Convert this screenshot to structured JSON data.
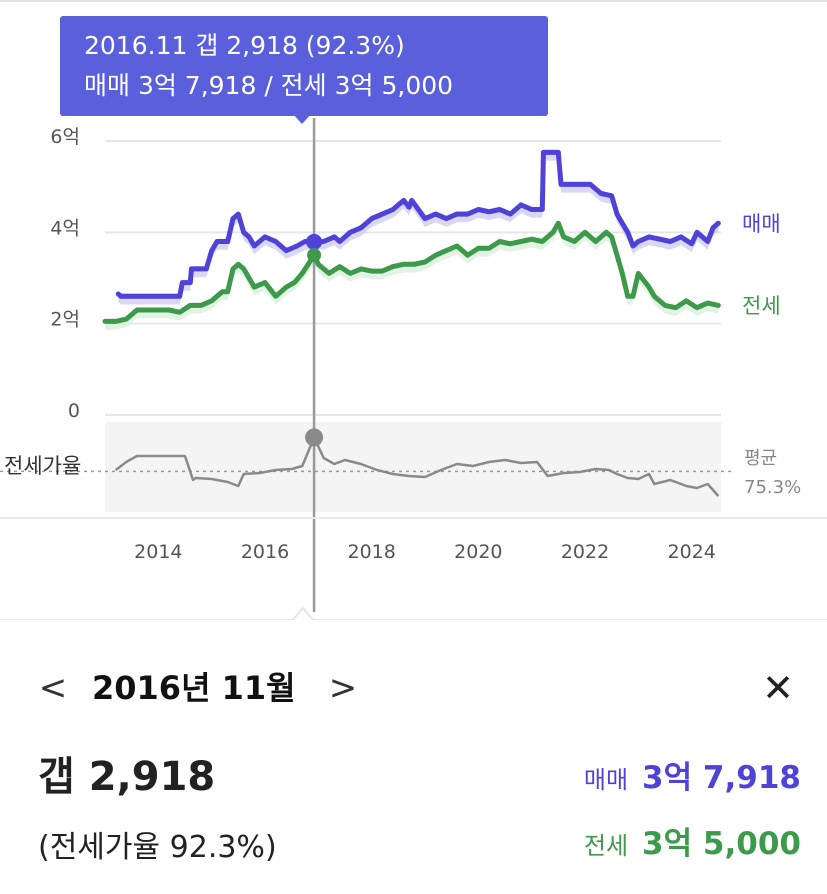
{
  "tooltip": {
    "line1": "2016.11  갭 2,918 (92.3%)",
    "line2": "매매 3억 7,918 / 전세 3억 5,000"
  },
  "colors": {
    "sale": "#4e42d8",
    "jeonse": "#3c9a4a",
    "ratio": "#8a8a8a",
    "tooltip_bg": "#5a5fdc",
    "sale_band": "#c9c6f3",
    "jeonse_band": "#d5ecd8"
  },
  "chart_data": {
    "type": "line",
    "title": "",
    "xlabel": "",
    "ylabel": "",
    "y_ticks": [
      "0",
      "2억",
      "4억",
      "6억"
    ],
    "ylim": [
      0,
      6
    ],
    "y_unit": "억",
    "x_ticks": [
      "2014",
      "2016",
      "2018",
      "2020",
      "2022",
      "2024"
    ],
    "xlim": [
      2013.0,
      2024.55
    ],
    "grid": true,
    "legend_placement": "right (inline labels)",
    "series": [
      {
        "name": "매매",
        "x": [
          2013.25,
          2013.3,
          2013.5,
          2013.8,
          2014.1,
          2014.4,
          2014.45,
          2014.6,
          2014.62,
          2014.9,
          2015.0,
          2015.1,
          2015.3,
          2015.4,
          2015.5,
          2015.6,
          2015.7,
          2015.8,
          2016.0,
          2016.2,
          2016.4,
          2016.6,
          2016.75,
          2016.92,
          2017.1,
          2017.3,
          2017.4,
          2017.6,
          2017.8,
          2018.0,
          2018.2,
          2018.4,
          2018.5,
          2018.6,
          2018.7,
          2018.75,
          2019.0,
          2019.2,
          2019.4,
          2019.6,
          2019.8,
          2020.0,
          2020.2,
          2020.4,
          2020.6,
          2020.8,
          2021.0,
          2021.2,
          2021.22,
          2021.5,
          2021.55,
          2021.7,
          2021.72,
          2021.9,
          2022.1,
          2022.3,
          2022.5,
          2022.6,
          2022.7,
          2022.8,
          2022.9,
          2023.0,
          2023.2,
          2023.4,
          2023.6,
          2023.8,
          2024.0,
          2024.1,
          2024.2,
          2024.3,
          2024.4,
          2024.5
        ],
        "y": [
          2.65,
          2.6,
          2.6,
          2.6,
          2.6,
          2.6,
          2.9,
          2.9,
          3.2,
          3.2,
          3.6,
          3.8,
          3.8,
          4.3,
          4.4,
          4.0,
          3.9,
          3.7,
          3.9,
          3.8,
          3.6,
          3.7,
          3.8,
          3.8,
          3.8,
          3.9,
          3.8,
          4.0,
          4.1,
          4.3,
          4.4,
          4.5,
          4.6,
          4.7,
          4.55,
          4.7,
          4.3,
          4.4,
          4.3,
          4.4,
          4.4,
          4.5,
          4.45,
          4.5,
          4.4,
          4.6,
          4.5,
          4.5,
          5.75,
          5.75,
          5.05,
          5.05,
          5.05,
          5.05,
          5.05,
          4.85,
          4.8,
          4.4,
          4.2,
          4.0,
          3.7,
          3.8,
          3.9,
          3.85,
          3.8,
          3.9,
          3.75,
          4.0,
          3.9,
          3.8,
          4.1,
          4.2
        ]
      },
      {
        "name": "전세",
        "x": [
          2013.0,
          2013.2,
          2013.4,
          2013.6,
          2013.9,
          2014.2,
          2014.4,
          2014.6,
          2014.8,
          2015.0,
          2015.2,
          2015.3,
          2015.4,
          2015.5,
          2015.6,
          2015.8,
          2016.0,
          2016.2,
          2016.4,
          2016.55,
          2016.7,
          2016.92,
          2017.0,
          2017.2,
          2017.4,
          2017.6,
          2017.8,
          2018.0,
          2018.2,
          2018.4,
          2018.6,
          2018.8,
          2019.0,
          2019.2,
          2019.4,
          2019.6,
          2019.8,
          2020.0,
          2020.2,
          2020.4,
          2020.6,
          2020.8,
          2021.0,
          2021.2,
          2021.4,
          2021.5,
          2021.6,
          2021.8,
          2022.0,
          2022.2,
          2022.3,
          2022.4,
          2022.5,
          2022.6,
          2022.7,
          2022.8,
          2022.9,
          2023.0,
          2023.2,
          2023.3,
          2023.5,
          2023.7,
          2023.9,
          2024.1,
          2024.3,
          2024.5
        ],
        "y": [
          2.05,
          2.05,
          2.1,
          2.3,
          2.3,
          2.3,
          2.25,
          2.4,
          2.4,
          2.5,
          2.7,
          2.7,
          3.2,
          3.3,
          3.2,
          2.8,
          2.9,
          2.6,
          2.8,
          2.9,
          3.1,
          3.5,
          3.3,
          3.1,
          3.25,
          3.1,
          3.2,
          3.15,
          3.15,
          3.25,
          3.3,
          3.3,
          3.35,
          3.5,
          3.6,
          3.7,
          3.5,
          3.65,
          3.65,
          3.8,
          3.75,
          3.8,
          3.85,
          3.8,
          4.0,
          4.2,
          3.9,
          3.8,
          4.0,
          3.8,
          3.9,
          4.0,
          3.9,
          3.5,
          3.1,
          2.6,
          2.6,
          3.1,
          2.8,
          2.6,
          2.4,
          2.35,
          2.5,
          2.35,
          2.45,
          2.4
        ]
      },
      {
        "name": "전세가율",
        "x": [
          2013.2,
          2013.4,
          2013.6,
          2014.0,
          2014.5,
          2014.65,
          2014.7,
          2015.0,
          2015.3,
          2015.5,
          2015.6,
          2015.9,
          2016.2,
          2016.5,
          2016.7,
          2016.92,
          2017.1,
          2017.3,
          2017.5,
          2017.8,
          2018.1,
          2018.4,
          2018.7,
          2019.0,
          2019.3,
          2019.6,
          2019.9,
          2020.2,
          2020.5,
          2020.8,
          2021.1,
          2021.3,
          2021.6,
          2021.9,
          2022.2,
          2022.45,
          2022.6,
          2022.8,
          2023.0,
          2023.2,
          2023.3,
          2023.6,
          2023.9,
          2024.1,
          2024.3,
          2024.5
        ],
        "y": [
          76.0,
          80.0,
          83.0,
          83.0,
          83.0,
          71.0,
          72.0,
          71.5,
          70.0,
          68.0,
          74.0,
          74.5,
          76.0,
          76.5,
          78.0,
          92.3,
          82.0,
          79.0,
          81.0,
          79.0,
          76.0,
          74.0,
          73.0,
          72.5,
          76.0,
          79.0,
          78.0,
          80.0,
          81.0,
          79.5,
          80.0,
          73.0,
          74.5,
          75.0,
          76.5,
          76.0,
          74.0,
          72.0,
          71.5,
          74.0,
          69.0,
          71.0,
          68.0,
          67.0,
          69.0,
          63.0
        ]
      }
    ],
    "ratio_average_label": "평균",
    "ratio_average_value": "75.3%",
    "ratio_average": 75.3,
    "ratio_panel_label": "전세가율",
    "highlight": {
      "x": 2016.92,
      "sale": 3.7918,
      "jeonse": 3.5,
      "ratio": 92.3
    }
  },
  "detail": {
    "prev_label": "<",
    "next_label": ">",
    "month_title": "2016년 11월",
    "close_label": "✕",
    "gap": "갭 2,918",
    "ratio": "(전세가율 92.3%)",
    "sale_key": "매매",
    "sale_value": "3억 7,918",
    "jeonse_key": "전세",
    "jeonse_value": "3억 5,000"
  }
}
